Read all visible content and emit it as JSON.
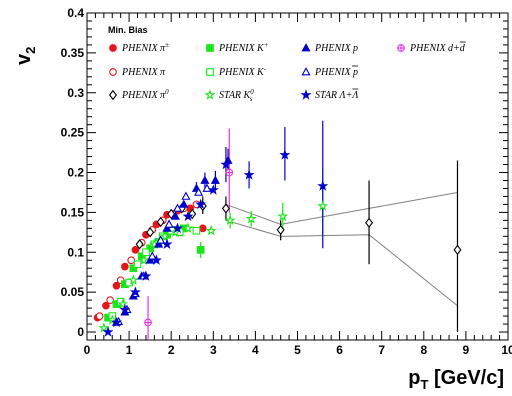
{
  "chart_data": {
    "type": "scatter",
    "title": "",
    "xlabel": "p_T [GeV/c]",
    "xlabel_main": "p",
    "xlabel_sub": "T",
    "xlabel_unit": " [GeV/c]",
    "ylabel": "v_2",
    "ylabel_main": "v",
    "ylabel_sub": "2",
    "xlim": [
      0,
      10
    ],
    "ylim": [
      -0.01,
      0.4
    ],
    "xticks": [
      0,
      1,
      2,
      3,
      4,
      5,
      6,
      7,
      8,
      9,
      10
    ],
    "xtick_labels": [
      "0",
      "1",
      "2",
      "3",
      "4",
      "5",
      "6",
      "7",
      "8",
      "9",
      "10"
    ],
    "yticks": [
      0,
      0.05,
      0.1,
      0.15,
      0.2,
      0.25,
      0.3,
      0.35,
      0.4
    ],
    "ytick_labels": [
      "0",
      "0.05",
      "0.1",
      "0.15",
      "0.2",
      "0.25",
      "0.3",
      "0.35",
      "0.4"
    ],
    "legend_title": "Min. Bias",
    "legend_position": "top",
    "grid": false,
    "series": [
      {
        "name": "PHENIX π±",
        "label_parts": [
          "PHENIX  π",
          "±"
        ],
        "marker": "circle",
        "filled": true,
        "color": "#e8141c",
        "points": [
          [
            0.25,
            0.018
          ],
          [
            0.45,
            0.033
          ],
          [
            0.7,
            0.058
          ],
          [
            0.9,
            0.082
          ],
          [
            1.15,
            0.103
          ],
          [
            1.4,
            0.122
          ],
          [
            1.65,
            0.135
          ],
          [
            1.9,
            0.147
          ],
          [
            2.15,
            0.152
          ],
          [
            2.45,
            0.155
          ],
          [
            2.75,
            0.13
          ]
        ]
      },
      {
        "name": "PHENIX π",
        "label_parts": [
          "PHENIX  π",
          ""
        ],
        "marker": "circle",
        "filled": false,
        "color": "#e8141c",
        "points": [
          [
            0.3,
            0.02
          ],
          [
            0.55,
            0.04
          ],
          [
            0.8,
            0.065
          ],
          [
            1.05,
            0.09
          ],
          [
            1.3,
            0.112
          ],
          [
            1.55,
            0.128
          ],
          [
            1.8,
            0.14
          ],
          [
            2.05,
            0.148
          ],
          [
            2.3,
            0.155
          ],
          [
            2.6,
            0.16
          ]
        ]
      },
      {
        "name": "PHENIX π0",
        "label_parts": [
          "PHENIX  π",
          "0"
        ],
        "marker": "diamond",
        "filled": false,
        "color": "#000000",
        "points": [
          [
            1.25,
            0.11
          ],
          [
            1.5,
            0.125
          ],
          [
            1.75,
            0.138
          ],
          [
            2.0,
            0.148
          ],
          [
            2.25,
            0.155
          ],
          [
            2.5,
            0.148
          ],
          [
            2.75,
            0.158
          ],
          [
            3.3,
            0.155
          ],
          [
            4.6,
            0.128
          ],
          [
            6.7,
            0.137
          ],
          [
            8.8,
            0.103
          ]
        ],
        "errors": [
          [
            1.25,
            0.108,
            0.112
          ],
          [
            1.5,
            0.123,
            0.127
          ],
          [
            1.75,
            0.136,
            0.14
          ],
          [
            2.0,
            0.145,
            0.151
          ],
          [
            2.25,
            0.152,
            0.158
          ],
          [
            2.5,
            0.142,
            0.156
          ],
          [
            2.75,
            0.148,
            0.17
          ],
          [
            3.3,
            0.14,
            0.17
          ],
          [
            4.6,
            0.115,
            0.14
          ],
          [
            6.7,
            0.085,
            0.19
          ],
          [
            8.8,
            0.0,
            0.215
          ]
        ]
      },
      {
        "name": "PHENIX K+",
        "label_parts": [
          "PHENIX  K",
          "+"
        ],
        "marker": "square",
        "filled": true,
        "color": "#19e619",
        "points": [
          [
            0.5,
            0.018
          ],
          [
            0.7,
            0.035
          ],
          [
            0.9,
            0.06
          ],
          [
            1.1,
            0.08
          ],
          [
            1.3,
            0.095
          ],
          [
            1.5,
            0.105
          ],
          [
            1.7,
            0.113
          ],
          [
            1.9,
            0.122
          ],
          [
            2.1,
            0.128
          ],
          [
            2.3,
            0.13
          ],
          [
            2.7,
            0.103
          ]
        ],
        "errors": [
          [
            2.7,
            0.093,
            0.113
          ]
        ]
      },
      {
        "name": "PHENIX K-",
        "label_parts": [
          "PHENIX  K",
          "-"
        ],
        "marker": "square",
        "filled": false,
        "color": "#19e619",
        "points": [
          [
            0.6,
            0.02
          ],
          [
            0.8,
            0.038
          ],
          [
            1.0,
            0.062
          ],
          [
            1.2,
            0.085
          ],
          [
            1.4,
            0.1
          ],
          [
            1.6,
            0.11
          ],
          [
            1.8,
            0.12
          ],
          [
            2.0,
            0.127
          ],
          [
            2.2,
            0.125
          ],
          [
            2.6,
            0.127
          ]
        ]
      },
      {
        "name": "STAR K0s",
        "label_parts": [
          "STAR      K",
          "0",
          "s"
        ],
        "marker": "star",
        "filled": false,
        "color": "#19e619",
        "points": [
          [
            0.4,
            0.005
          ],
          [
            0.6,
            0.015
          ],
          [
            0.85,
            0.035
          ],
          [
            1.1,
            0.065
          ],
          [
            1.35,
            0.09
          ],
          [
            1.6,
            0.11
          ],
          [
            1.85,
            0.12
          ],
          [
            2.1,
            0.125
          ],
          [
            2.4,
            0.13
          ],
          [
            2.95,
            0.127
          ],
          [
            3.4,
            0.14
          ],
          [
            3.9,
            0.142
          ],
          [
            4.65,
            0.145
          ],
          [
            5.6,
            0.158
          ]
        ],
        "errors": [
          [
            3.4,
            0.13,
            0.15
          ],
          [
            3.9,
            0.132,
            0.152
          ],
          [
            4.65,
            0.128,
            0.162
          ],
          [
            5.6,
            0.12,
            0.205
          ]
        ]
      },
      {
        "name": "PHENIX p",
        "label_parts": [
          "PHENIX  p",
          ""
        ],
        "marker": "triangle",
        "filled": true,
        "color": "#0000cc",
        "points": [
          [
            0.7,
            0.012
          ],
          [
            0.9,
            0.025
          ],
          [
            1.1,
            0.045
          ],
          [
            1.3,
            0.07
          ],
          [
            1.5,
            0.09
          ],
          [
            1.7,
            0.11
          ],
          [
            1.9,
            0.13
          ],
          [
            2.1,
            0.145
          ],
          [
            2.3,
            0.16
          ],
          [
            2.6,
            0.18
          ],
          [
            2.8,
            0.19
          ],
          [
            3.05,
            0.19
          ],
          [
            3.35,
            0.215
          ]
        ],
        "errors": [
          [
            2.6,
            0.172,
            0.188
          ],
          [
            2.8,
            0.18,
            0.2
          ],
          [
            3.05,
            0.178,
            0.202
          ],
          [
            3.35,
            0.2,
            0.23
          ]
        ]
      },
      {
        "name": "PHENIX p̄",
        "label_parts": [
          "PHENIX  p",
          ""
        ],
        "overline": true,
        "marker": "triangle",
        "filled": false,
        "color": "#0000cc",
        "points": [
          [
            0.75,
            0.013
          ],
          [
            0.95,
            0.028
          ],
          [
            1.15,
            0.048
          ],
          [
            1.35,
            0.07
          ],
          [
            1.55,
            0.095
          ],
          [
            1.75,
            0.115
          ],
          [
            1.95,
            0.135
          ],
          [
            2.15,
            0.155
          ],
          [
            2.35,
            0.17
          ],
          [
            2.65,
            0.175
          ],
          [
            2.85,
            0.18
          ]
        ]
      },
      {
        "name": "STAR Λ+Λ̄",
        "label_parts": [
          "STAR    Λ+Λ",
          ""
        ],
        "overline": true,
        "marker": "star",
        "filled": true,
        "color": "#0000cc",
        "points": [
          [
            0.5,
            0.0
          ],
          [
            0.7,
            0.012
          ],
          [
            0.9,
            0.028
          ],
          [
            1.15,
            0.05
          ],
          [
            1.4,
            0.07
          ],
          [
            1.65,
            0.09
          ],
          [
            1.9,
            0.11
          ],
          [
            2.15,
            0.13
          ],
          [
            2.4,
            0.145
          ],
          [
            2.7,
            0.16
          ],
          [
            3.0,
            0.178
          ],
          [
            3.3,
            0.21
          ],
          [
            3.85,
            0.197
          ],
          [
            4.7,
            0.222
          ],
          [
            5.6,
            0.183
          ]
        ],
        "errors": [
          [
            3.3,
            0.188,
            0.232
          ],
          [
            3.85,
            0.18,
            0.214
          ],
          [
            4.7,
            0.19,
            0.257
          ],
          [
            5.6,
            0.105,
            0.265
          ]
        ]
      },
      {
        "name": "PHENIX d+d̄",
        "label_parts": [
          "PHENIX  d+d",
          ""
        ],
        "overline": true,
        "marker": "cross-circle",
        "filled": false,
        "color": "#e633e6",
        "points": [
          [
            1.45,
            0.012
          ],
          [
            3.38,
            0.2
          ]
        ],
        "errors": [
          [
            1.45,
            -0.01,
            0.045
          ],
          [
            3.38,
            0.15,
            0.255
          ]
        ]
      }
    ],
    "band": {
      "color": "#808080",
      "upper": [
        [
          3.3,
          0.16
        ],
        [
          4.6,
          0.135
        ],
        [
          6.7,
          0.155
        ],
        [
          8.8,
          0.175
        ]
      ],
      "lower": [
        [
          3.3,
          0.14
        ],
        [
          4.6,
          0.12
        ],
        [
          6.7,
          0.122
        ],
        [
          8.8,
          0.033
        ]
      ]
    }
  }
}
